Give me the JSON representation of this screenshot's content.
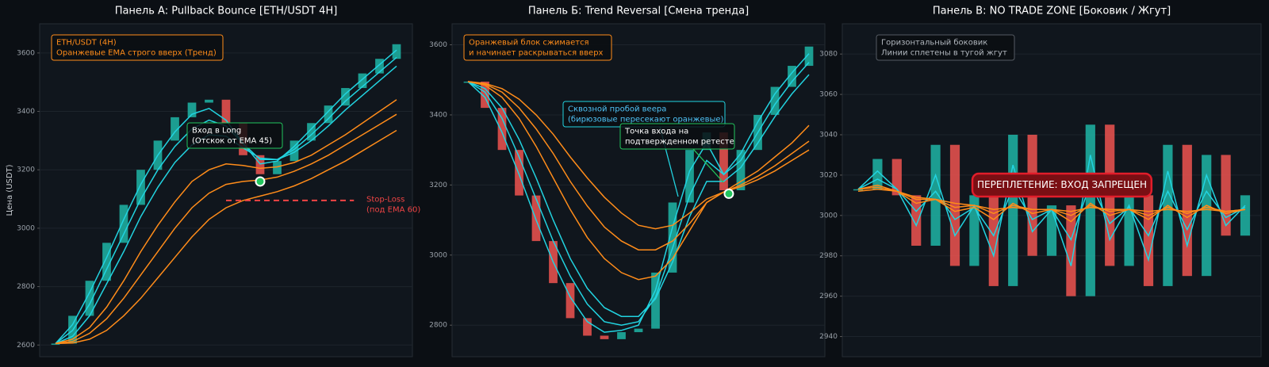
{
  "chart_data": [
    {
      "type": "line",
      "title": "Панель A: Pullback Bounce [ETH/USDT 4H]",
      "ylabel": "Цена (USDT)",
      "ylim": [
        2560,
        3700
      ],
      "yticks": [
        2600,
        2800,
        3000,
        3200,
        3400,
        3600
      ],
      "grid": true,
      "x": [
        0,
        1,
        2,
        3,
        4,
        5,
        6,
        7,
        8,
        9,
        10,
        11,
        12,
        13,
        14,
        15,
        16,
        17,
        18,
        19,
        20
      ],
      "price": {
        "up_color": "#1fb5a6",
        "down_color": "#ef5350",
        "values": [
          2605,
          2700,
          2820,
          2950,
          3080,
          3200,
          3300,
          3380,
          3430,
          3440,
          3360,
          3250,
          3185,
          3230,
          3300,
          3360,
          3420,
          3480,
          3530,
          3580,
          3630
        ]
      },
      "series": [
        {
          "color": "#22d3e0",
          "values": [
            2605,
            2670,
            2780,
            2900,
            3030,
            3150,
            3250,
            3330,
            3390,
            3410,
            3370,
            3290,
            3220,
            3230,
            3280,
            3340,
            3400,
            3460,
            3510,
            3560,
            3610
          ]
        },
        {
          "color": "#22d3e0",
          "values": [
            2605,
            2650,
            2740,
            2860,
            2980,
            3100,
            3200,
            3280,
            3340,
            3370,
            3350,
            3290,
            3235,
            3235,
            3270,
            3320,
            3375,
            3435,
            3485,
            3535,
            3585
          ]
        },
        {
          "color": "#22d3e0",
          "values": [
            2605,
            2630,
            2700,
            2810,
            2920,
            3040,
            3140,
            3225,
            3285,
            3320,
            3315,
            3275,
            3240,
            3235,
            3260,
            3300,
            3350,
            3405,
            3455,
            3505,
            3555
          ]
        },
        {
          "color": "#ff8c1a",
          "values": [
            2605,
            2620,
            2660,
            2730,
            2820,
            2920,
            3010,
            3090,
            3160,
            3200,
            3220,
            3215,
            3205,
            3210,
            3225,
            3250,
            3285,
            3320,
            3360,
            3400,
            3440
          ]
        },
        {
          "color": "#ff8c1a",
          "values": [
            2605,
            2612,
            2640,
            2690,
            2760,
            2840,
            2920,
            3000,
            3070,
            3120,
            3150,
            3160,
            3165,
            3175,
            3195,
            3220,
            3250,
            3285,
            3320,
            3355,
            3390
          ]
        },
        {
          "color": "#ff8c1a",
          "values": [
            2605,
            2607,
            2620,
            2650,
            2700,
            2760,
            2830,
            2900,
            2970,
            3030,
            3070,
            3095,
            3110,
            3125,
            3145,
            3170,
            3200,
            3230,
            3265,
            3300,
            3335
          ]
        }
      ],
      "entry": {
        "x": 12,
        "y": 3160,
        "color": "#22c55e"
      },
      "stop_loss": {
        "y": 3095,
        "x": [
          10,
          17.5
        ],
        "color": "#ef4444"
      },
      "notes": [
        {
          "lines": [
            "ETH/USDT (4H)",
            "Оранжевые EMA строго вверх (Тренд)"
          ],
          "color": "#ff8c1a",
          "text_color": "#ff8c1a"
        },
        {
          "lines": [
            "Вход в Long",
            "(Отскок от EMA 45)"
          ],
          "color": "#22c55e",
          "text_color": "#ffffff"
        },
        {
          "lines": [
            "Stop-Loss",
            "(под EMA 60)"
          ],
          "text_color": "#ef4444"
        }
      ]
    },
    {
      "type": "line",
      "title": "Панель Б: Trend Reversal [Смена тренда]",
      "ylim": [
        2710,
        3660
      ],
      "yticks": [
        2800,
        3000,
        3200,
        3400,
        3600
      ],
      "grid": true,
      "x": [
        0,
        1,
        2,
        3,
        4,
        5,
        6,
        7,
        8,
        9,
        10,
        11,
        12,
        13,
        14,
        15,
        16,
        17,
        18,
        19,
        20
      ],
      "price": {
        "up_color": "#1fb5a6",
        "down_color": "#ef5350",
        "values": [
          3495,
          3420,
          3300,
          3170,
          3040,
          2920,
          2820,
          2770,
          2760,
          2780,
          2790,
          2950,
          3150,
          3300,
          3350,
          3185,
          3300,
          3400,
          3480,
          3540,
          3595
        ]
      },
      "series": [
        {
          "color": "#22d3e0",
          "values": [
            3495,
            3450,
            3350,
            3230,
            3100,
            2980,
            2880,
            2810,
            2780,
            2785,
            2800,
            2900,
            3080,
            3240,
            3320,
            3230,
            3290,
            3380,
            3460,
            3520,
            3575
          ]
        },
        {
          "color": "#22d3e0",
          "values": [
            3495,
            3465,
            3390,
            3280,
            3160,
            3040,
            2940,
            2860,
            2810,
            2800,
            2810,
            2880,
            3020,
            3170,
            3270,
            3230,
            3270,
            3350,
            3430,
            3495,
            3550
          ]
        },
        {
          "color": "#22d3e0",
          "values": [
            3495,
            3475,
            3420,
            3330,
            3220,
            3100,
            2990,
            2905,
            2850,
            2825,
            2825,
            2875,
            2980,
            3110,
            3210,
            3210,
            3250,
            3320,
            3395,
            3460,
            3515
          ]
        },
        {
          "color": "#ff8c1a",
          "values": [
            3495,
            3485,
            3450,
            3390,
            3310,
            3220,
            3130,
            3050,
            2990,
            2950,
            2930,
            2940,
            2990,
            3070,
            3150,
            3180,
            3210,
            3240,
            3280,
            3320,
            3370
          ]
        },
        {
          "color": "#ff8c1a",
          "values": [
            3495,
            3488,
            3465,
            3420,
            3360,
            3290,
            3210,
            3140,
            3080,
            3040,
            3015,
            3015,
            3040,
            3090,
            3150,
            3180,
            3200,
            3225,
            3255,
            3290,
            3325
          ]
        },
        {
          "color": "#ff8c1a",
          "values": [
            3495,
            3490,
            3475,
            3445,
            3400,
            3345,
            3280,
            3220,
            3165,
            3120,
            3085,
            3075,
            3085,
            3120,
            3160,
            3180,
            3195,
            3215,
            3240,
            3270,
            3300
          ]
        }
      ],
      "entry": {
        "x": 15.3,
        "y": 3175,
        "color": "#22c55e"
      },
      "notes": [
        {
          "lines": [
            "Оранжевый блок сжимается",
            "и начинает раскрываться вверх"
          ],
          "color": "#ff8c1a",
          "text_color": "#ff8c1a"
        },
        {
          "lines": [
            "Сквозной пробой веера",
            "(бирюзовые пересекают оранжевые)"
          ],
          "color": "#22d3e0",
          "text_color": "#4fc3f7"
        },
        {
          "lines": [
            "Точка входа на",
            "подтвержденном ретесте"
          ],
          "color": "#22c55e",
          "text_color": "#ffffff"
        }
      ]
    },
    {
      "type": "line",
      "title": "Панель В: NO TRADE ZONE [Боковик / Жгут]",
      "ylim": [
        2930,
        3095
      ],
      "yticks": [
        2940,
        2960,
        2980,
        3000,
        3020,
        3040,
        3060,
        3080
      ],
      "grid": true,
      "x": [
        0,
        1,
        2,
        3,
        4,
        5,
        6,
        7,
        8,
        9,
        10,
        11,
        12,
        13,
        14,
        15,
        16,
        17,
        18,
        19,
        20
      ],
      "price": {
        "up_color": "#1fb5a6",
        "down_color": "#ef5350",
        "values": [
          3013,
          3028,
          3010,
          2985,
          3035,
          2975,
          3010,
          2965,
          3040,
          2980,
          3005,
          2960,
          3045,
          2975,
          3010,
          2965,
          3035,
          2970,
          3030,
          2990,
          3010
        ]
      },
      "series": [
        {
          "color": "#22d3e0",
          "values": [
            3013,
            3022,
            3013,
            2995,
            3020,
            2990,
            3005,
            2980,
            3025,
            2992,
            3003,
            2975,
            3030,
            2988,
            3005,
            2978,
            3022,
            2985,
            3020,
            2995,
            3005
          ]
        },
        {
          "color": "#22d3e0",
          "values": [
            3013,
            3018,
            3013,
            3002,
            3012,
            2998,
            3004,
            2990,
            3014,
            2998,
            3003,
            2988,
            3016,
            2996,
            3004,
            2990,
            3012,
            2993,
            3012,
            2999,
            3004
          ]
        },
        {
          "color": "#ff8c1a",
          "values": [
            3013,
            3015,
            3012,
            3006,
            3008,
            3002,
            3004,
            2998,
            3006,
            3001,
            3003,
            2997,
            3006,
            3000,
            3003,
            2998,
            3005,
            2999,
            3005,
            3001,
            3003
          ]
        },
        {
          "color": "#ff8c1a",
          "values": [
            3013,
            3014,
            3012,
            3008,
            3008,
            3004,
            3005,
            3001,
            3005,
            3003,
            3003,
            3000,
            3005,
            3002,
            3003,
            3000,
            3004,
            3001,
            3004,
            3002,
            3003
          ]
        },
        {
          "color": "#ff8c1a",
          "values": [
            3012,
            3013,
            3012,
            3009,
            3008,
            3006,
            3005,
            3003,
            3004,
            3003,
            3003,
            3002,
            3004,
            3003,
            3003,
            3002,
            3003,
            3002,
            3003,
            3002,
            3003
          ]
        }
      ],
      "notes": [
        {
          "lines": [
            "Горизонтальный боковик",
            "Линии сплетены в тугой жгут"
          ],
          "color": "#555b63",
          "text_color": "#b0b6bd"
        },
        {
          "lines": [
            "ПЕРЕПЛЕТЕНИЕ: ВХОД ЗАПРЕЩЕН"
          ],
          "color": "#e11d2a",
          "text_color": "#ffffff"
        }
      ]
    }
  ]
}
